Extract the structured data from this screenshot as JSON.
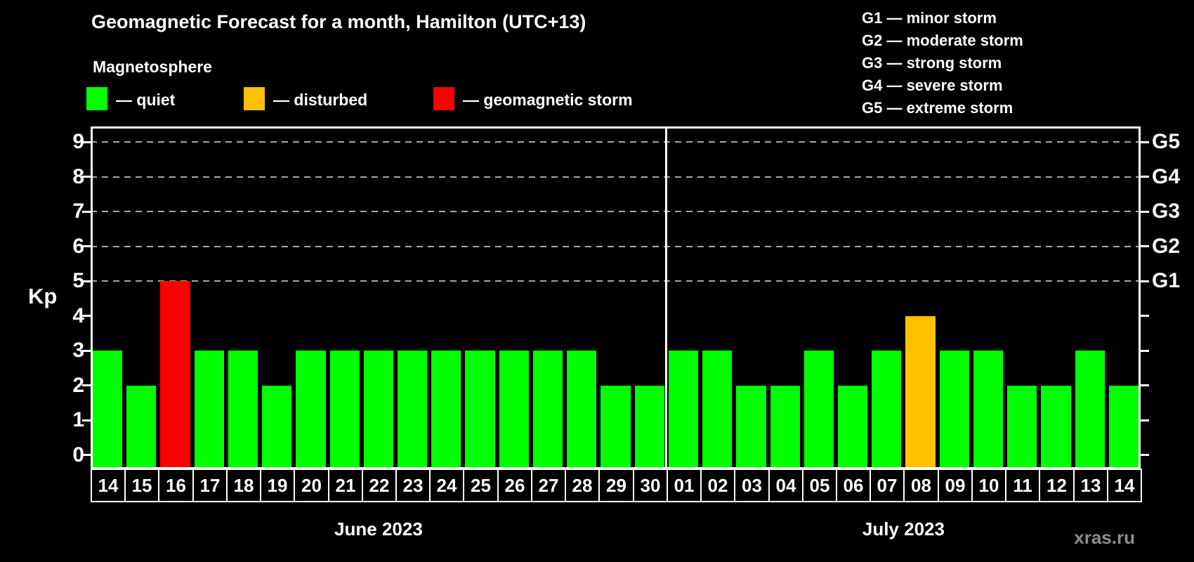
{
  "title": "Geomagnetic Forecast for a month, Hamilton (UTC+13)",
  "subtitle": "Magnetosphere",
  "colors": {
    "quiet": "#00ff00",
    "disturbed": "#ffc000",
    "storm": "#ff0000",
    "frame": "#ffffff",
    "grid": "#a8a8a8",
    "watermark": "#8c8c8c",
    "background": "#000000"
  },
  "legend": {
    "items": [
      {
        "status": "quiet",
        "label": "— quiet"
      },
      {
        "status": "disturbed",
        "label": "— disturbed"
      },
      {
        "status": "storm",
        "label": "— geomagnetic storm"
      }
    ]
  },
  "g_legend": {
    "items": [
      "G1 — minor storm",
      "G2 — moderate storm",
      "G3 — strong storm",
      "G4 — severe storm",
      "G5 — extreme storm"
    ]
  },
  "axis": {
    "y_label": "Kp",
    "y_ticks": [
      "0",
      "1",
      "2",
      "3",
      "4",
      "5",
      "6",
      "7",
      "8",
      "9"
    ],
    "right_labels": [
      {
        "kp": 5,
        "text": "G1"
      },
      {
        "kp": 6,
        "text": "G2"
      },
      {
        "kp": 7,
        "text": "G3"
      },
      {
        "kp": 8,
        "text": "G4"
      },
      {
        "kp": 9,
        "text": "G5"
      }
    ],
    "gridline_levels": [
      5,
      6,
      7,
      8,
      9
    ]
  },
  "months": [
    {
      "label": "June 2023",
      "days": [
        "14",
        "15",
        "16",
        "17",
        "18",
        "19",
        "20",
        "21",
        "22",
        "23",
        "24",
        "25",
        "26",
        "27",
        "28",
        "29",
        "30"
      ],
      "values": [
        3,
        2,
        5,
        3,
        3,
        2,
        3,
        3,
        3,
        3,
        3,
        3,
        3,
        3,
        3,
        2,
        2
      ],
      "status": [
        "quiet",
        "quiet",
        "storm",
        "quiet",
        "quiet",
        "quiet",
        "quiet",
        "quiet",
        "quiet",
        "quiet",
        "quiet",
        "quiet",
        "quiet",
        "quiet",
        "quiet",
        "quiet",
        "quiet"
      ]
    },
    {
      "label": "July 2023",
      "days": [
        "01",
        "02",
        "03",
        "04",
        "05",
        "06",
        "07",
        "08",
        "09",
        "10",
        "11",
        "12",
        "13",
        "14"
      ],
      "values": [
        3,
        3,
        2,
        2,
        3,
        2,
        3,
        4,
        3,
        3,
        2,
        2,
        3,
        2
      ],
      "status": [
        "quiet",
        "quiet",
        "quiet",
        "quiet",
        "quiet",
        "quiet",
        "quiet",
        "disturbed",
        "quiet",
        "quiet",
        "quiet",
        "quiet",
        "quiet",
        "quiet"
      ]
    }
  ],
  "watermark": "xras.ru",
  "chart_data": {
    "type": "bar",
    "title": "Geomagnetic Forecast for a month, Hamilton (UTC+13)",
    "xlabel": "",
    "ylabel": "Kp",
    "ylim": [
      0,
      9.5
    ],
    "grid": "dashed horizontal at Kp 5-9 only",
    "legend_position": "top-left (status colors) and top-right (G scale)",
    "categories": [
      "Jun 14",
      "Jun 15",
      "Jun 16",
      "Jun 17",
      "Jun 18",
      "Jun 19",
      "Jun 20",
      "Jun 21",
      "Jun 22",
      "Jun 23",
      "Jun 24",
      "Jun 25",
      "Jun 26",
      "Jun 27",
      "Jun 28",
      "Jun 29",
      "Jun 30",
      "Jul 01",
      "Jul 02",
      "Jul 03",
      "Jul 04",
      "Jul 05",
      "Jul 06",
      "Jul 07",
      "Jul 08",
      "Jul 09",
      "Jul 10",
      "Jul 11",
      "Jul 12",
      "Jul 13",
      "Jul 14"
    ],
    "values": [
      3,
      2,
      5,
      3,
      3,
      2,
      3,
      3,
      3,
      3,
      3,
      3,
      3,
      3,
      3,
      2,
      2,
      3,
      3,
      2,
      2,
      3,
      2,
      3,
      4,
      3,
      3,
      2,
      2,
      3,
      2
    ],
    "status": [
      "quiet",
      "quiet",
      "storm",
      "quiet",
      "quiet",
      "quiet",
      "quiet",
      "quiet",
      "quiet",
      "quiet",
      "quiet",
      "quiet",
      "quiet",
      "quiet",
      "quiet",
      "quiet",
      "quiet",
      "quiet",
      "quiet",
      "quiet",
      "quiet",
      "quiet",
      "quiet",
      "quiet",
      "disturbed",
      "quiet",
      "quiet",
      "quiet",
      "quiet",
      "quiet",
      "quiet"
    ],
    "right_axis_labels": {
      "5": "G1",
      "6": "G2",
      "7": "G3",
      "8": "G4",
      "9": "G5"
    }
  }
}
